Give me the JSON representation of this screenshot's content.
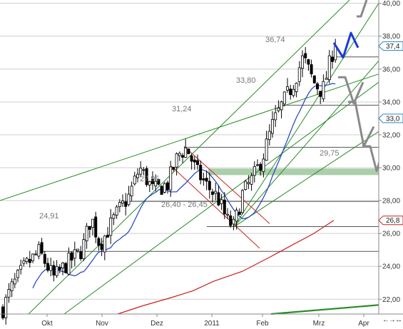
{
  "chart_data": {
    "type": "candlestick",
    "title": "",
    "xlabel": "",
    "ylabel": "",
    "ylim": [
      21.1,
      40.2
    ],
    "grid": "horizontal",
    "x_tick_labels": [
      "Okt",
      "Nov",
      "Dez",
      "2011",
      "Feb",
      "Mrz",
      "Apr"
    ],
    "y_tick_labels": [
      "22,00",
      "24,00",
      "26,00",
      "28,00",
      "30,00",
      "32,00",
      "34,00",
      "36,00",
      "38,00",
      "40,00"
    ],
    "y_tick_values": [
      22,
      24,
      26,
      28,
      30,
      32,
      34,
      36,
      38,
      40
    ],
    "last_price_tags": [
      {
        "label": "37,4",
        "value": 37.4,
        "color": "#2e86c1"
      },
      {
        "label": "33,0",
        "value": 33.0,
        "color": "#2e86c1"
      },
      {
        "label": "26,8",
        "value": 26.8,
        "color": "#cc2222"
      }
    ],
    "annotations": [
      {
        "text": "36,74",
        "value": 36.74
      },
      {
        "text": "33,80",
        "value": 33.8
      },
      {
        "text": "31,24",
        "value": 31.24
      },
      {
        "text": "27,95",
        "value": 27.95
      },
      {
        "text": "29,75",
        "value": 29.75
      },
      {
        "text": "26,40 - 26,45",
        "value": 26.42
      },
      {
        "text": "24,91",
        "value": 24.91
      }
    ],
    "horizontal_levels": [
      36.74,
      33.8,
      31.24,
      27.95,
      26.42,
      24.91
    ],
    "support_zone": [
      29.55,
      29.95
    ],
    "colors": {
      "candle": "#000000",
      "ma_fast": "#1f3fbf",
      "ma_slow": "#cc1f1f",
      "trendline": "#2a8a2a",
      "support_zone": "#8fbf8f",
      "forecast_primary": "#1a3adb",
      "forecast_alt": "#8a8a8a"
    }
  },
  "scroll_arrows": {
    "left": "←",
    "right": "→",
    "both": "↔"
  }
}
